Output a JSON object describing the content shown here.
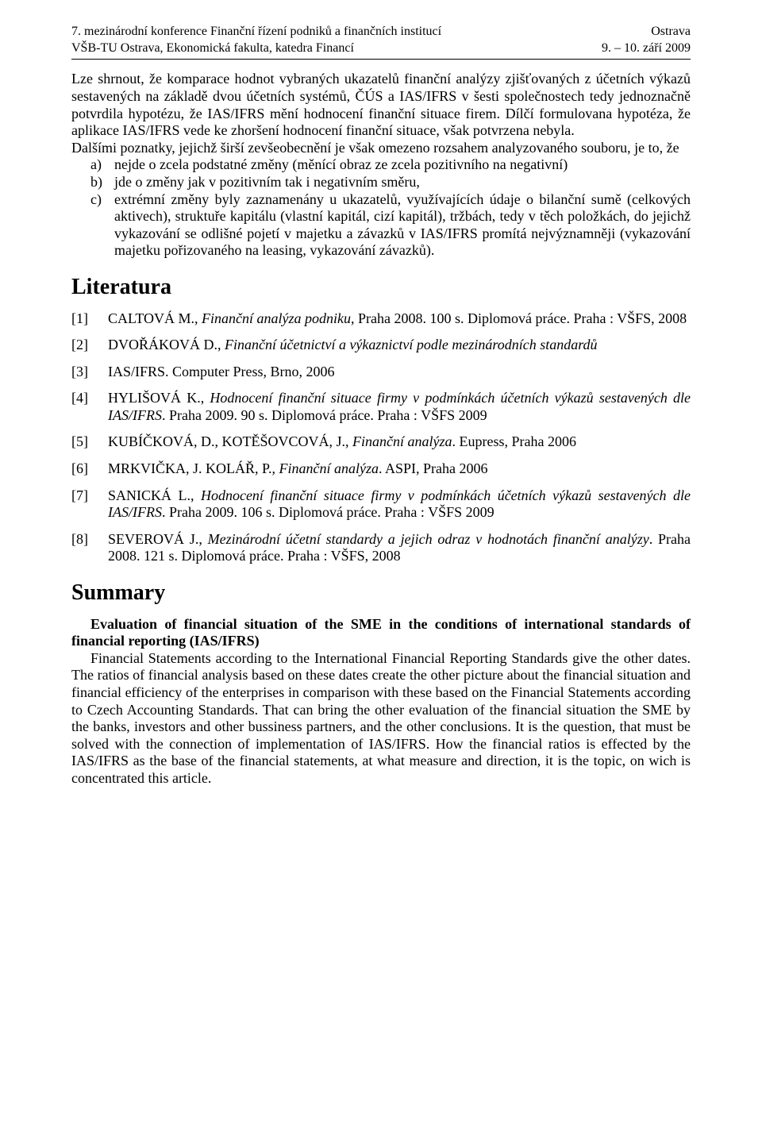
{
  "header": {
    "left1": "7. mezinárodní konference Finanční řízení podniků a finančních institucí",
    "right1": "Ostrava",
    "left2": "VŠB-TU Ostrava, Ekonomická fakulta, katedra Financí",
    "right2": "9. – 10. září 2009"
  },
  "para_lead": "Lze shrnout, že komparace hodnot vybraných ukazatelů finanční analýzy zjišťovaných z účetních výkazů sestavených na základě dvou účetních systémů, ČÚS a IAS/IFRS v šesti společnostech tedy jednoznačně potvrdila hypotézu, že IAS/IFRS mění hodnocení finanční situace firem. Dílčí formulovana hypotéza, že aplikace IAS/IFRS vede ke zhoršení hodnocení finanční situace, však potvrzena nebyla.",
  "para_follow": "Dalšími poznatky, jejichž širší zevšeobecnění je však omezeno rozsahem analyzovaného souboru, je to, že",
  "bullets": [
    {
      "marker": "a)",
      "text": "nejde o zcela podstatné změny (měnící obraz ze zcela pozitivního na negativní)"
    },
    {
      "marker": "b)",
      "text": "jde o změny jak v pozitivním tak i negativním směru,"
    },
    {
      "marker": "c)",
      "text": "extrémní změny byly zaznamenány u ukazatelů, využívajících údaje o bilanční sumě (celkových aktivech), struktuře kapitálu (vlastní kapitál, cizí kapitál), tržbách, tedy v těch položkách, do jejichž vykazování se odlišné pojetí v majetku a závazků v IAS/IFRS promítá nejvýznamněji (vykazování majetku pořizovaného na leasing, vykazování závazků)."
    }
  ],
  "sections": {
    "literature": "Literatura",
    "summary": "Summary"
  },
  "refs": [
    {
      "num": "[1]",
      "pre": "CALTOVÁ M., ",
      "ital": "Finanční analýza podniku",
      "post": ", Praha 2008. 100 s. Diplomová práce. Praha : VŠFS, 2008"
    },
    {
      "num": "[2]",
      "pre": "DVOŘÁKOVÁ D., ",
      "ital": "Finanční účetnictví a výkaznictví podle mezinárodních standardů",
      "post": ""
    },
    {
      "num": "[3]",
      "pre": "IAS/IFRS. Computer Press, Brno, 2006",
      "ital": "",
      "post": ""
    },
    {
      "num": "[4]",
      "pre": "HYLIŠOVÁ K., ",
      "ital": "Hodnocení finanční situace firmy v podmínkách účetních výkazů sestavených dle IAS/IFRS",
      "post": ". Praha 2009. 90 s. Diplomová práce. Praha : VŠFS 2009"
    },
    {
      "num": "[5]",
      "pre": "KUBÍČKOVÁ, D., KOTĚŠOVCOVÁ, J., ",
      "ital": "Finanční analýza",
      "post": ". Eupress, Praha 2006"
    },
    {
      "num": "[6]",
      "pre": "MRKVIČKA, J. KOLÁŘ, P., ",
      "ital": "Finanční analýza",
      "post": ". ASPI, Praha 2006"
    },
    {
      "num": "[7]",
      "pre": "SANICKÁ L., ",
      "ital": "Hodnocení finanční situace firmy v podmínkách účetních výkazů sestavených dle IAS/IFRS",
      "post": ". Praha 2009. 106 s. Diplomová práce. Praha : VŠFS 2009"
    },
    {
      "num": "[8]",
      "pre": "SEVEROVÁ J., ",
      "ital": "Mezinárodní účetní standardy a jejich odraz v hodnotách finanční analýzy",
      "post": ". Praha 2008. 121 s. Diplomová práce. Praha : VŠFS, 2008"
    }
  ],
  "summary": {
    "title": "Evaluation of financial situation of the SME in the conditions of international standards of financial reporting (IAS/IFRS)",
    "body": "Financial Statements according to the International Financial Reporting Standards give the other dates. The ratios of financial analysis based on these dates create the other picture about the financial situation and financial efficiency of the enterprises in comparison with these based on the Financial Statements according to Czech Accounting Standards. That can bring the other evaluation of the financial situation the SME by the banks, investors and other bussiness partners, and the other conclusions. It is the question, that must be solved with the connection of implementation of IAS/IFRS. How the financial ratios is effected by the IAS/IFRS as the base of the financial statements, at what measure and direction, it is the topic, on wich is concentrated this article."
  }
}
